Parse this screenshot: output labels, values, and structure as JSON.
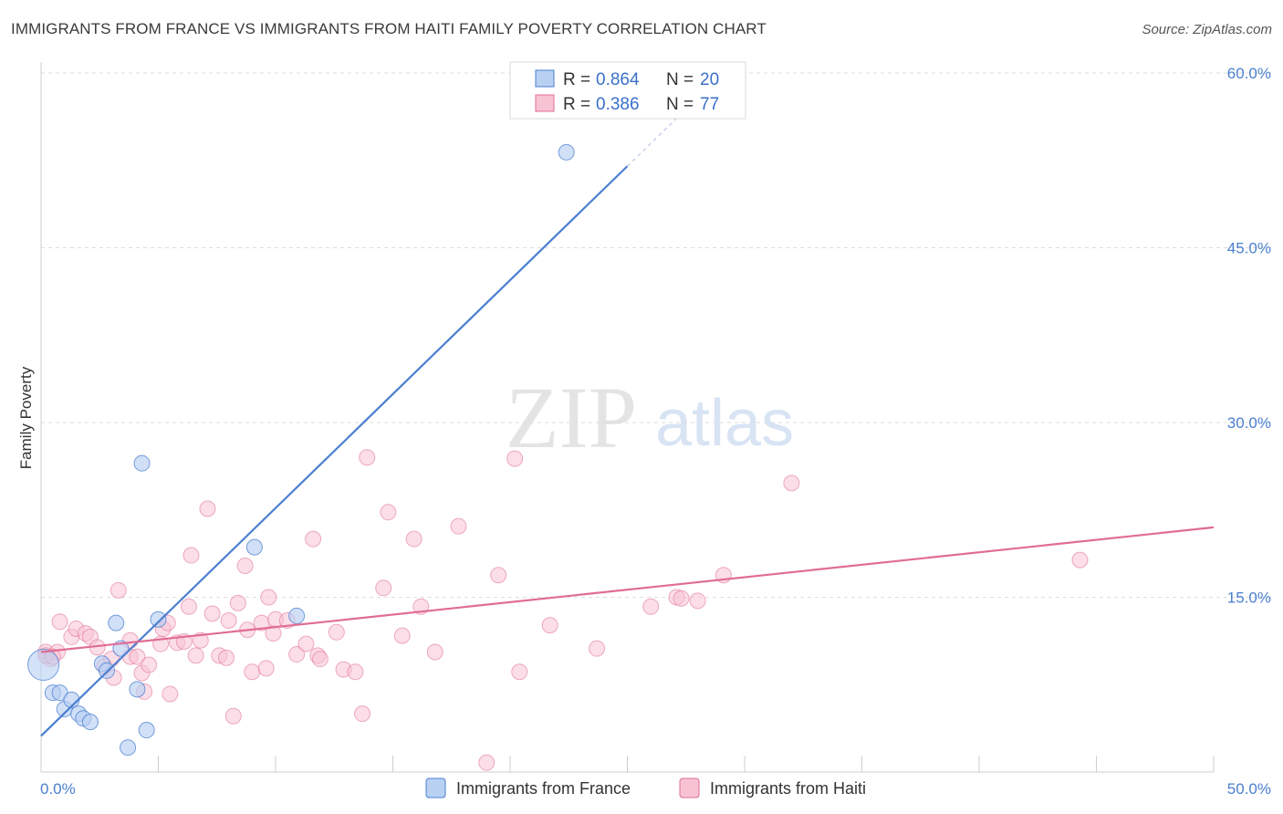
{
  "header": {
    "title": "IMMIGRANTS FROM FRANCE VS IMMIGRANTS FROM HAITI FAMILY POVERTY CORRELATION CHART",
    "source": "Source: ZipAtlas.com"
  },
  "watermark": {
    "part1": "ZIP",
    "part2": "atlas"
  },
  "colors": {
    "france": "#4a7fd0",
    "france_fill": "#b8d0f2",
    "haiti": "#e06c95",
    "haiti_fill": "#f7c3d3",
    "grid": "#dddddd",
    "axis_label": "#4a7fd0"
  },
  "chart_data": {
    "type": "scatter",
    "title": "IMMIGRANTS FROM FRANCE VS IMMIGRANTS FROM HAITI FAMILY POVERTY CORRELATION CHART",
    "xlabel": "",
    "ylabel": "Family Poverty",
    "xlim": [
      0,
      50
    ],
    "ylim": [
      0,
      60
    ],
    "x_tick_labels": [
      "0.0%",
      "50.0%"
    ],
    "y_ticks": [
      15,
      30,
      45,
      60
    ],
    "y_tick_labels": [
      "15.0%",
      "30.0%",
      "45.0%",
      "60.0%"
    ],
    "legend": [
      {
        "r_label": "R =",
        "r": "0.864",
        "n_label": "N =",
        "n": "20"
      },
      {
        "r_label": "R =",
        "r": "0.386",
        "n_label": "N =",
        "n": "77"
      }
    ],
    "series": [
      {
        "name": "Immigrants from France",
        "r": 0.864,
        "n": 20,
        "trend": {
          "x0": 0,
          "y0": 3.1,
          "x1": 25,
          "y1": 52.0,
          "dash_to_x": 27.5
        },
        "points": [
          [
            0.1,
            9.2,
            "big"
          ],
          [
            0.5,
            6.8
          ],
          [
            0.8,
            6.8
          ],
          [
            1.0,
            5.4
          ],
          [
            1.3,
            6.2
          ],
          [
            1.6,
            5.0
          ],
          [
            1.8,
            4.6
          ],
          [
            2.1,
            4.3
          ],
          [
            2.6,
            9.3
          ],
          [
            2.8,
            8.7
          ],
          [
            3.2,
            12.8
          ],
          [
            3.4,
            10.6
          ],
          [
            4.1,
            7.1
          ],
          [
            4.3,
            26.5
          ],
          [
            4.5,
            3.6
          ],
          [
            3.7,
            2.1
          ],
          [
            5.0,
            13.1
          ],
          [
            9.1,
            19.3
          ],
          [
            10.9,
            13.4
          ],
          [
            22.4,
            53.2
          ]
        ]
      },
      {
        "name": "Immigrants from Haiti",
        "r": 0.386,
        "n": 77,
        "trend": {
          "x0": 0,
          "y0": 10.3,
          "x1": 50,
          "y1": 21.0
        },
        "points": [
          [
            0.2,
            10.3
          ],
          [
            0.4,
            9.7
          ],
          [
            0.7,
            10.3
          ],
          [
            0.8,
            12.9
          ],
          [
            1.3,
            11.6
          ],
          [
            1.5,
            12.3
          ],
          [
            1.9,
            11.9
          ],
          [
            2.1,
            11.6
          ],
          [
            2.4,
            10.7
          ],
          [
            2.7,
            9.1
          ],
          [
            3.0,
            9.7
          ],
          [
            3.1,
            8.1
          ],
          [
            3.3,
            15.6
          ],
          [
            3.8,
            9.9
          ],
          [
            3.8,
            11.3
          ],
          [
            4.1,
            9.9
          ],
          [
            4.3,
            8.5
          ],
          [
            4.4,
            6.9
          ],
          [
            4.6,
            9.2
          ],
          [
            5.1,
            11.0
          ],
          [
            5.2,
            12.3
          ],
          [
            5.4,
            12.8
          ],
          [
            5.5,
            6.7
          ],
          [
            5.8,
            11.1
          ],
          [
            6.1,
            11.2
          ],
          [
            6.3,
            14.2
          ],
          [
            6.4,
            18.6
          ],
          [
            6.6,
            10.0
          ],
          [
            6.8,
            11.3
          ],
          [
            7.1,
            22.6
          ],
          [
            7.3,
            13.6
          ],
          [
            7.6,
            10.0
          ],
          [
            7.9,
            9.8
          ],
          [
            8.0,
            13.0
          ],
          [
            8.2,
            4.8
          ],
          [
            8.4,
            14.5
          ],
          [
            8.7,
            17.7
          ],
          [
            8.8,
            12.2
          ],
          [
            9.0,
            8.6
          ],
          [
            9.4,
            12.8
          ],
          [
            9.6,
            8.9
          ],
          [
            9.7,
            15.0
          ],
          [
            9.9,
            11.9
          ],
          [
            10.0,
            13.1
          ],
          [
            10.5,
            13.0
          ],
          [
            10.9,
            10.1
          ],
          [
            11.3,
            11.0
          ],
          [
            11.6,
            20.0
          ],
          [
            11.8,
            10.0
          ],
          [
            11.9,
            9.7
          ],
          [
            12.6,
            12.0
          ],
          [
            12.9,
            8.8
          ],
          [
            13.4,
            8.6
          ],
          [
            13.7,
            5.0
          ],
          [
            13.9,
            27.0
          ],
          [
            14.6,
            15.8
          ],
          [
            14.8,
            22.3
          ],
          [
            15.4,
            11.7
          ],
          [
            15.9,
            20.0
          ],
          [
            16.2,
            14.2
          ],
          [
            16.8,
            10.3
          ],
          [
            17.8,
            21.1
          ],
          [
            19.0,
            0.8
          ],
          [
            19.5,
            16.9
          ],
          [
            20.2,
            26.9
          ],
          [
            20.4,
            8.6
          ],
          [
            21.7,
            12.6
          ],
          [
            23.7,
            10.6
          ],
          [
            26.0,
            14.2
          ],
          [
            27.1,
            15.0
          ],
          [
            27.3,
            14.9
          ],
          [
            28.0,
            14.7
          ],
          [
            29.1,
            16.9
          ],
          [
            32.0,
            24.8
          ],
          [
            44.3,
            18.2
          ],
          [
            0.2,
            10.0
          ],
          [
            0.5,
            9.9
          ]
        ]
      }
    ]
  }
}
